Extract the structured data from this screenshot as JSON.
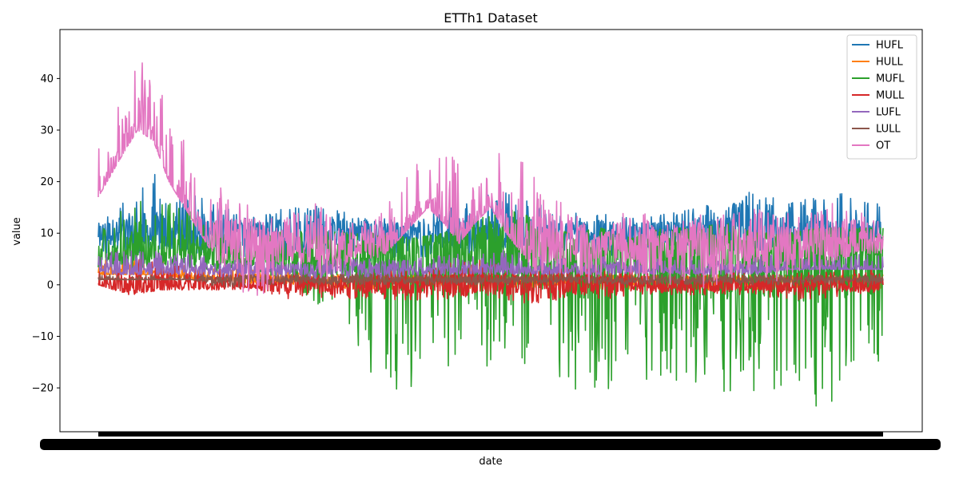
{
  "chart_data": {
    "type": "line",
    "title": "ETTh1 Dataset",
    "xlabel": "date",
    "ylabel": "value",
    "ylim": [
      -28.5,
      49.5
    ],
    "yticks": [
      -20,
      -10,
      0,
      10,
      20,
      30,
      40
    ],
    "ytick_labels": [
      "−20",
      "−10",
      "0",
      "10",
      "20",
      "30",
      "40"
    ],
    "xticks_note": "x tick labels overlap into an unreadable black band",
    "legend_position": "upper right",
    "grid": false,
    "series": [
      {
        "name": "HUFL",
        "color": "#1f77b4",
        "envelope": [
          [
            0,
            5,
            12
          ],
          [
            4,
            6,
            20
          ],
          [
            8,
            7,
            22
          ],
          [
            12,
            6,
            18
          ],
          [
            16,
            5,
            15
          ],
          [
            20,
            5,
            13
          ],
          [
            24,
            4,
            15
          ],
          [
            28,
            6,
            16
          ],
          [
            32,
            5,
            14
          ],
          [
            36,
            4,
            13
          ],
          [
            40,
            5,
            12
          ],
          [
            44,
            6,
            15
          ],
          [
            48,
            5,
            17
          ],
          [
            52,
            5,
            18
          ],
          [
            56,
            6,
            16
          ],
          [
            60,
            6,
            14
          ],
          [
            64,
            5,
            14
          ],
          [
            68,
            6,
            13
          ],
          [
            72,
            6,
            14
          ],
          [
            76,
            6,
            15
          ],
          [
            80,
            5,
            16
          ],
          [
            84,
            4,
            19
          ],
          [
            88,
            7,
            16
          ],
          [
            92,
            8,
            17
          ],
          [
            96,
            9,
            18
          ],
          [
            100,
            8,
            17
          ]
        ],
        "base_y": 10
      },
      {
        "name": "HULL",
        "color": "#ff7f0e",
        "envelope": [
          [
            0,
            2,
            5
          ],
          [
            4,
            2,
            6
          ],
          [
            8,
            2,
            5
          ],
          [
            12,
            1,
            4
          ],
          [
            16,
            1,
            4
          ],
          [
            20,
            0,
            3
          ],
          [
            24,
            0,
            3
          ],
          [
            28,
            0,
            2
          ],
          [
            32,
            -1,
            2
          ],
          [
            36,
            -1,
            2
          ],
          [
            40,
            -1,
            2
          ],
          [
            44,
            -1,
            2
          ],
          [
            48,
            -1,
            2
          ],
          [
            52,
            -1,
            2
          ],
          [
            56,
            -1,
            2
          ],
          [
            60,
            -1,
            2
          ],
          [
            64,
            -1,
            2
          ],
          [
            68,
            -1,
            2
          ],
          [
            72,
            -1,
            2
          ],
          [
            76,
            -1,
            2
          ],
          [
            80,
            -1,
            2
          ],
          [
            84,
            -1,
            2
          ],
          [
            88,
            -1,
            2
          ],
          [
            92,
            -1,
            2
          ],
          [
            96,
            -1,
            2
          ],
          [
            100,
            -1,
            2
          ]
        ],
        "base_y": 1
      },
      {
        "name": "MUFL",
        "color": "#2ca02c",
        "envelope": [
          [
            0,
            3,
            10
          ],
          [
            4,
            3,
            16
          ],
          [
            8,
            4,
            17
          ],
          [
            12,
            3,
            14
          ],
          [
            16,
            2,
            12
          ],
          [
            20,
            2,
            11
          ],
          [
            24,
            1,
            10
          ],
          [
            28,
            -5,
            11
          ],
          [
            32,
            -12,
            10
          ],
          [
            36,
            -20,
            10
          ],
          [
            40,
            -21,
            9
          ],
          [
            44,
            -20,
            10
          ],
          [
            48,
            -15,
            13
          ],
          [
            52,
            -18,
            16
          ],
          [
            56,
            -15,
            12
          ],
          [
            60,
            -20,
            10
          ],
          [
            64,
            -22,
            11
          ],
          [
            68,
            -18,
            9
          ],
          [
            72,
            -19,
            11
          ],
          [
            76,
            -19,
            11
          ],
          [
            80,
            -21,
            12
          ],
          [
            84,
            -21,
            10
          ],
          [
            88,
            -23,
            10
          ],
          [
            92,
            -25,
            11
          ],
          [
            96,
            -20,
            11
          ],
          [
            100,
            -17,
            11
          ]
        ],
        "base_y": 6
      },
      {
        "name": "MULL",
        "color": "#d62728",
        "envelope": [
          [
            0,
            0,
            4
          ],
          [
            4,
            -2,
            5
          ],
          [
            8,
            -1,
            5
          ],
          [
            12,
            -1,
            3
          ],
          [
            16,
            -1,
            3
          ],
          [
            20,
            -1,
            2
          ],
          [
            24,
            -3,
            3
          ],
          [
            28,
            -3,
            2
          ],
          [
            32,
            -3,
            2
          ],
          [
            36,
            -3,
            3
          ],
          [
            40,
            -3,
            3
          ],
          [
            44,
            -3,
            4
          ],
          [
            48,
            -3,
            5
          ],
          [
            52,
            -3,
            4
          ],
          [
            56,
            -4,
            4
          ],
          [
            60,
            -3,
            4
          ],
          [
            64,
            -3,
            3
          ],
          [
            68,
            -2,
            3
          ],
          [
            72,
            -2,
            2
          ],
          [
            76,
            -2,
            2
          ],
          [
            80,
            -2,
            3
          ],
          [
            84,
            -2,
            2
          ],
          [
            88,
            -3,
            2
          ],
          [
            92,
            -3,
            3
          ],
          [
            96,
            -2,
            3
          ],
          [
            100,
            -2,
            3
          ]
        ],
        "base_y": 0
      },
      {
        "name": "LUFL",
        "color": "#9467bd",
        "envelope": [
          [
            0,
            2,
            6
          ],
          [
            4,
            2,
            7
          ],
          [
            8,
            2,
            7
          ],
          [
            12,
            2,
            6
          ],
          [
            16,
            1,
            5
          ],
          [
            20,
            1,
            5
          ],
          [
            24,
            1,
            5
          ],
          [
            28,
            1,
            5
          ],
          [
            32,
            1,
            5
          ],
          [
            36,
            1,
            5
          ],
          [
            40,
            1,
            5
          ],
          [
            44,
            2,
            6
          ],
          [
            48,
            2,
            6
          ],
          [
            52,
            2,
            7
          ],
          [
            56,
            2,
            6
          ],
          [
            60,
            2,
            5
          ],
          [
            64,
            2,
            6
          ],
          [
            68,
            2,
            5
          ],
          [
            72,
            2,
            5
          ],
          [
            76,
            2,
            6
          ],
          [
            80,
            2,
            6
          ],
          [
            84,
            2,
            6
          ],
          [
            88,
            3,
            6
          ],
          [
            92,
            3,
            6
          ],
          [
            96,
            3,
            6
          ],
          [
            100,
            3,
            6
          ]
        ],
        "base_y": 3
      },
      {
        "name": "LULL",
        "color": "#8c564b",
        "envelope": [
          [
            0,
            1,
            2
          ],
          [
            4,
            1,
            2
          ],
          [
            8,
            1,
            2
          ],
          [
            12,
            1,
            2
          ],
          [
            16,
            -1,
            2
          ],
          [
            20,
            0,
            2
          ],
          [
            24,
            0,
            2
          ],
          [
            28,
            0,
            2
          ],
          [
            32,
            0,
            2
          ],
          [
            36,
            0,
            2
          ],
          [
            40,
            0,
            2
          ],
          [
            44,
            0,
            2
          ],
          [
            48,
            0,
            2
          ],
          [
            52,
            0,
            2
          ],
          [
            56,
            0,
            2
          ],
          [
            60,
            0,
            2
          ],
          [
            64,
            0,
            2
          ],
          [
            68,
            0,
            2
          ],
          [
            72,
            0,
            2
          ],
          [
            76,
            0,
            2
          ],
          [
            80,
            0,
            2
          ],
          [
            84,
            0,
            2
          ],
          [
            88,
            0,
            2
          ],
          [
            92,
            0,
            2
          ],
          [
            96,
            0,
            2
          ],
          [
            100,
            0,
            2
          ]
        ],
        "base_y": 1
      },
      {
        "name": "OT",
        "color": "#e377c2",
        "envelope": [
          [
            0,
            17,
            30
          ],
          [
            3,
            25,
            38
          ],
          [
            5,
            30,
            45
          ],
          [
            7,
            28,
            40
          ],
          [
            9,
            20,
            35
          ],
          [
            11,
            15,
            28
          ],
          [
            13,
            10,
            24
          ],
          [
            15,
            5,
            22
          ],
          [
            17,
            0,
            18
          ],
          [
            19,
            -2,
            16
          ],
          [
            21,
            -3,
            14
          ],
          [
            23,
            2,
            12
          ],
          [
            25,
            5,
            14
          ],
          [
            27,
            2,
            16
          ],
          [
            29,
            1,
            16
          ],
          [
            31,
            2,
            13
          ],
          [
            33,
            5,
            12
          ],
          [
            36,
            5,
            14
          ],
          [
            39,
            10,
            22
          ],
          [
            42,
            15,
            25
          ],
          [
            44,
            12,
            26
          ],
          [
            46,
            8,
            24
          ],
          [
            48,
            12,
            22
          ],
          [
            50,
            15,
            26
          ],
          [
            52,
            10,
            28
          ],
          [
            54,
            6,
            24
          ],
          [
            56,
            2,
            22
          ],
          [
            58,
            0,
            18
          ],
          [
            60,
            0,
            15
          ],
          [
            62,
            0,
            12
          ],
          [
            64,
            0,
            10
          ],
          [
            66,
            2,
            13
          ],
          [
            68,
            2,
            15
          ],
          [
            70,
            0,
            14
          ],
          [
            72,
            0,
            12
          ],
          [
            74,
            -2,
            12
          ],
          [
            76,
            -2,
            14
          ],
          [
            78,
            -3,
            14
          ],
          [
            80,
            0,
            14
          ],
          [
            82,
            2,
            14
          ],
          [
            84,
            2,
            15
          ],
          [
            86,
            0,
            14
          ],
          [
            88,
            2,
            14
          ],
          [
            90,
            3,
            15
          ],
          [
            92,
            2,
            15
          ],
          [
            94,
            4,
            16
          ],
          [
            96,
            5,
            14
          ],
          [
            98,
            5,
            14
          ],
          [
            100,
            6,
            12
          ]
        ],
        "base_y": 8
      }
    ]
  }
}
